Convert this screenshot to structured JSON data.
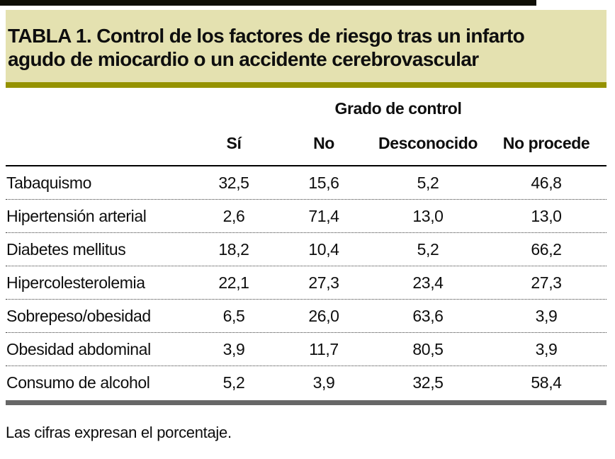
{
  "title": {
    "line1": "TABLA 1. Control de los factores de riesgo tras un infarto",
    "line2": "agudo de miocardio o un accidente cerebrovascular"
  },
  "table": {
    "group_header": "Grado de control",
    "columns": [
      "Sí",
      "No",
      "Desconocido",
      "No procede"
    ],
    "rows": [
      {
        "label": "Tabaquismo",
        "values": [
          "32,5",
          "15,6",
          "5,2",
          "46,8"
        ]
      },
      {
        "label": "Hipertensión arterial",
        "values": [
          "2,6",
          "71,4",
          "13,0",
          "13,0"
        ]
      },
      {
        "label": "Diabetes mellitus",
        "values": [
          "18,2",
          "10,4",
          "5,2",
          "66,2"
        ]
      },
      {
        "label": "Hipercolesterolemia",
        "values": [
          "22,1",
          "27,3",
          "23,4",
          "27,3"
        ]
      },
      {
        "label": "Sobrepeso/obesidad",
        "values": [
          "6,5",
          "26,0",
          "63,6",
          "3,9"
        ]
      },
      {
        "label": "Obesidad abdominal",
        "values": [
          "3,9",
          "11,7",
          "80,5",
          "3,9"
        ]
      },
      {
        "label": "Consumo de alcohol",
        "values": [
          "5,2",
          "3,9",
          "32,5",
          "58,4"
        ]
      }
    ]
  },
  "footnote": "Las cifras expresan el porcentaje.",
  "colors": {
    "panel-bg": "#e4e1b0",
    "rule-olive": "#959200",
    "bar-gray": "#676767",
    "top-bar": "#0e0e06",
    "text": "#0e0e0e"
  }
}
